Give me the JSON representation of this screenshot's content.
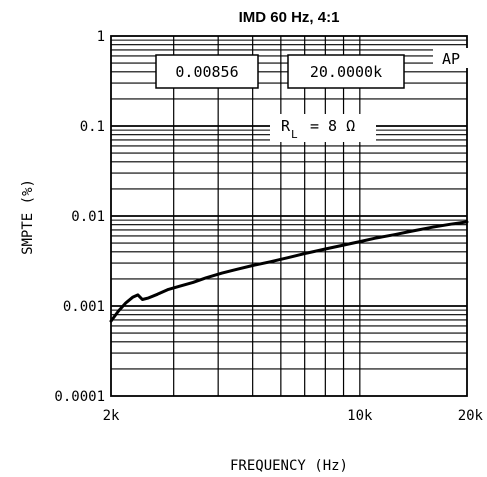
{
  "chart_data": {
    "type": "line",
    "title": "IMD 60 Hz, 4:1",
    "xlabel": "FREQUENCY (Hz)",
    "ylabel": "SMPTE (%)",
    "x_scale": "log",
    "y_scale": "log",
    "xlim": [
      2000,
      20000
    ],
    "ylim": [
      0.0001,
      1
    ],
    "grid": true,
    "x_ticks": [
      {
        "value": 2000,
        "label": "2k"
      },
      {
        "value": 10000,
        "label": "10k"
      },
      {
        "value": 20000,
        "label": "20k"
      }
    ],
    "y_ticks": [
      {
        "value": 1,
        "label": "1"
      },
      {
        "value": 0.1,
        "label": "0.1"
      },
      {
        "value": 0.01,
        "label": "0.01"
      },
      {
        "value": 0.001,
        "label": "0.001"
      },
      {
        "value": 0.0001,
        "label": "0.0001"
      }
    ],
    "series": [
      {
        "x": [
          2000,
          2100,
          2200,
          2300,
          2380,
          2450,
          2550,
          2700,
          2900,
          3100,
          3400,
          3700,
          4100,
          4500,
          5000,
          5600,
          6300,
          7000,
          8000,
          9000,
          10000,
          11000,
          12500,
          14000,
          16000,
          18000,
          20000
        ],
        "y": [
          0.00068,
          0.00088,
          0.00108,
          0.00125,
          0.00133,
          0.00118,
          0.00123,
          0.00135,
          0.00153,
          0.00165,
          0.00183,
          0.00206,
          0.00232,
          0.00255,
          0.00282,
          0.0031,
          0.00345,
          0.00382,
          0.0043,
          0.00475,
          0.0052,
          0.00565,
          0.0062,
          0.0068,
          0.0075,
          0.0081,
          0.0086
        ]
      }
    ],
    "readouts": [
      "0.00856",
      "20.0000k"
    ],
    "corner_tag": "AP",
    "annotation": {
      "symbol": "R",
      "subscript": "L",
      "rest": "= 8 Ω"
    }
  },
  "colors": {
    "line": "#000000",
    "grid": "#000000",
    "background": "#ffffff"
  }
}
